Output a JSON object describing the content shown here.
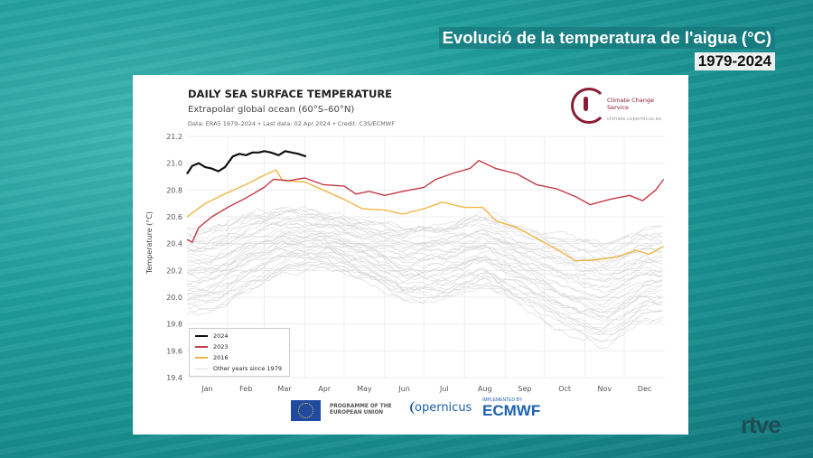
{
  "overlay": {
    "headline": "Evolució de la temperatura de l'aigua (°C)",
    "period": "1979-2024",
    "broadcaster_logo": "rtve"
  },
  "chart_data": {
    "type": "line",
    "title": "DAILY SEA SURFACE TEMPERATURE",
    "subtitle": "Extrapolar global ocean (60°S–60°N)",
    "credit": "Data: ERA5 1979–2024 • Last data: 02 Apr 2024 • Credit: C3S/ECMWF",
    "ylabel": "Temperature (°C)",
    "xlabel": "",
    "ylim": [
      19.4,
      21.2
    ],
    "yticks": [
      "21.2",
      "21.0",
      "20.8",
      "20.6",
      "20.4",
      "20.2",
      "20.0",
      "19.8",
      "19.6",
      "19.4"
    ],
    "xticks": [
      "Jan",
      "Feb",
      "Mar",
      "Apr",
      "May",
      "Jun",
      "Jul",
      "Aug",
      "Sep",
      "Oct",
      "Nov",
      "Dec"
    ],
    "grid": true,
    "legend_position": "bottom-left",
    "series": [
      {
        "name": "2024",
        "color": "#111111",
        "points": [
          [
            "01-01",
            20.92
          ],
          [
            "01-05",
            20.98
          ],
          [
            "01-10",
            21.0
          ],
          [
            "01-15",
            20.97
          ],
          [
            "01-20",
            20.96
          ],
          [
            "01-25",
            20.94
          ],
          [
            "01-30",
            20.97
          ],
          [
            "02-05",
            21.05
          ],
          [
            "02-10",
            21.07
          ],
          [
            "02-15",
            21.06
          ],
          [
            "02-20",
            21.08
          ],
          [
            "02-25",
            21.08
          ],
          [
            "03-01",
            21.09
          ],
          [
            "03-06",
            21.08
          ],
          [
            "03-12",
            21.06
          ],
          [
            "03-17",
            21.09
          ],
          [
            "03-22",
            21.08
          ],
          [
            "03-27",
            21.07
          ],
          [
            "04-02",
            21.05
          ]
        ]
      },
      {
        "name": "2023",
        "color": "#c23a45",
        "points": [
          [
            "01-01",
            20.43
          ],
          [
            "01-05",
            20.41
          ],
          [
            "01-10",
            20.52
          ],
          [
            "01-20",
            20.6
          ],
          [
            "02-01",
            20.67
          ],
          [
            "02-15",
            20.74
          ],
          [
            "03-01",
            20.82
          ],
          [
            "03-08",
            20.88
          ],
          [
            "03-20",
            20.87
          ],
          [
            "04-01",
            20.89
          ],
          [
            "04-15",
            20.84
          ],
          [
            "05-01",
            20.83
          ],
          [
            "05-10",
            20.77
          ],
          [
            "05-20",
            20.79
          ],
          [
            "06-01",
            20.76
          ],
          [
            "06-15",
            20.79
          ],
          [
            "07-01",
            20.82
          ],
          [
            "07-10",
            20.88
          ],
          [
            "07-25",
            20.93
          ],
          [
            "08-05",
            20.96
          ],
          [
            "08-12",
            21.02
          ],
          [
            "08-25",
            20.96
          ],
          [
            "09-10",
            20.92
          ],
          [
            "09-25",
            20.84
          ],
          [
            "10-10",
            20.81
          ],
          [
            "10-25",
            20.75
          ],
          [
            "11-05",
            20.69
          ],
          [
            "11-20",
            20.73
          ],
          [
            "12-05",
            20.76
          ],
          [
            "12-15",
            20.72
          ],
          [
            "12-25",
            20.8
          ],
          [
            "12-31",
            20.88
          ]
        ]
      },
      {
        "name": "2016",
        "color": "#f0b646",
        "points": [
          [
            "01-01",
            20.6
          ],
          [
            "01-15",
            20.7
          ],
          [
            "02-01",
            20.78
          ],
          [
            "02-15",
            20.84
          ],
          [
            "03-01",
            20.91
          ],
          [
            "03-10",
            20.95
          ],
          [
            "03-15",
            20.87
          ],
          [
            "04-01",
            20.86
          ],
          [
            "04-15",
            20.8
          ],
          [
            "05-01",
            20.73
          ],
          [
            "05-15",
            20.66
          ],
          [
            "06-01",
            20.65
          ],
          [
            "06-15",
            20.62
          ],
          [
            "07-01",
            20.66
          ],
          [
            "07-15",
            20.71
          ],
          [
            "08-01",
            20.67
          ],
          [
            "08-15",
            20.67
          ],
          [
            "08-25",
            20.57
          ],
          [
            "09-10",
            20.52
          ],
          [
            "09-25",
            20.44
          ],
          [
            "10-10",
            20.36
          ],
          [
            "10-25",
            20.27
          ],
          [
            "11-10",
            20.28
          ],
          [
            "11-25",
            20.3
          ],
          [
            "12-10",
            20.35
          ],
          [
            "12-20",
            20.32
          ],
          [
            "12-31",
            20.38
          ]
        ]
      }
    ],
    "other_years": {
      "name": "Other years since 1979",
      "color": "#d6d6d6",
      "approx_range_by_month": {
        "low": [
          19.85,
          20.0,
          20.15,
          20.2,
          20.1,
          19.95,
          19.95,
          20.05,
          19.9,
          19.7,
          19.6,
          19.8
        ],
        "high": [
          20.55,
          20.65,
          20.7,
          20.65,
          20.6,
          20.55,
          20.6,
          20.65,
          20.55,
          20.5,
          20.45,
          20.55
        ]
      }
    }
  },
  "branding": {
    "c3s": "Climate Change Service",
    "c3s_url": "climate.copernicus.eu",
    "eu_programme": "PROGRAMME OF THE EUROPEAN UNION",
    "copernicus": "opernicus",
    "ecmwf": "ECMWF",
    "ecmwf_note": "IMPLEMENTED BY"
  }
}
